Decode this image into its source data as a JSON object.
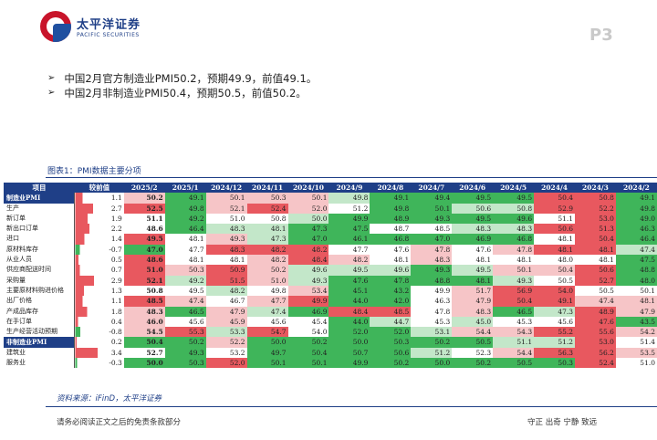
{
  "header": {
    "company_cn": "太平洋证券",
    "company_en": "PACIFIC SECURITIES",
    "page": "P3"
  },
  "bullets": [
    "中国2月官方制造业PMI50.2，预期49.9，前值49.1。",
    "中国2月非制造业PMI50.4，预期50.5，前值50.2。"
  ],
  "figure_title": "图表1：PMI数据主要分项",
  "table": {
    "columns": [
      "项目",
      "较前值",
      "2025/2",
      "2025/1",
      "2024/12",
      "2024/11",
      "2024/10",
      "2024/9",
      "2024/8",
      "2024/7",
      "2024/6",
      "2024/5",
      "2024/4",
      "2024/3",
      "2024/2"
    ],
    "rows": [
      {
        "name": "制造业PMI",
        "hl": true,
        "chg": "1.1",
        "vals": [
          "50.2",
          "49.1",
          "50.1",
          "50.3",
          "50.1",
          "49.8",
          "49.1",
          "49.4",
          "49.5",
          "49.5",
          "50.4",
          "50.8",
          "49.1"
        ]
      },
      {
        "name": "生产",
        "hl": false,
        "chg": "2.7",
        "vals": [
          "52.5",
          "49.8",
          "52.1",
          "52.4",
          "52.0",
          "51.2",
          "49.8",
          "50.1",
          "50.6",
          "50.8",
          "52.9",
          "52.2",
          "49.8"
        ]
      },
      {
        "name": "新订单",
        "hl": false,
        "chg": "1.9",
        "vals": [
          "51.1",
          "49.2",
          "51.0",
          "50.8",
          "50.0",
          "49.9",
          "48.9",
          "49.3",
          "49.5",
          "49.6",
          "51.1",
          "53.0",
          "49.0"
        ]
      },
      {
        "name": "新出口订单",
        "hl": false,
        "chg": "2.2",
        "vals": [
          "48.6",
          "46.4",
          "48.3",
          "48.1",
          "47.3",
          "47.5",
          "48.7",
          "48.5",
          "48.3",
          "48.3",
          "50.6",
          "51.3",
          "46.3"
        ]
      },
      {
        "name": "进口",
        "hl": false,
        "chg": "1.4",
        "vals": [
          "49.5",
          "48.1",
          "49.3",
          "47.3",
          "47.0",
          "46.1",
          "46.8",
          "47.0",
          "46.9",
          "46.8",
          "48.1",
          "50.4",
          "46.4"
        ]
      },
      {
        "name": "原材料库存",
        "hl": false,
        "chg": "-0.7",
        "vals": [
          "47.0",
          "47.7",
          "48.3",
          "48.2",
          "48.2",
          "47.7",
          "47.6",
          "47.8",
          "47.6",
          "47.8",
          "48.1",
          "48.1",
          "47.4"
        ]
      },
      {
        "name": "从业人员",
        "hl": false,
        "chg": "0.5",
        "vals": [
          "48.6",
          "48.1",
          "48.1",
          "48.2",
          "48.4",
          "48.2",
          "48.1",
          "48.3",
          "48.1",
          "48.1",
          "48.0",
          "48.1",
          "47.5"
        ]
      },
      {
        "name": "供应商配送时间",
        "hl": false,
        "chg": "0.7",
        "vals": [
          "51.0",
          "50.3",
          "50.9",
          "50.2",
          "49.6",
          "49.5",
          "49.6",
          "49.3",
          "49.5",
          "50.1",
          "50.4",
          "50.6",
          "48.8"
        ]
      },
      {
        "name": "采购量",
        "hl": false,
        "chg": "2.9",
        "vals": [
          "52.1",
          "49.2",
          "51.5",
          "51.0",
          "49.3",
          "47.6",
          "47.8",
          "48.8",
          "48.1",
          "49.3",
          "50.5",
          "52.7",
          "48.0"
        ]
      },
      {
        "name": "主要原材料购进价格",
        "hl": false,
        "chg": "1.3",
        "vals": [
          "50.8",
          "49.5",
          "48.2",
          "49.8",
          "53.4",
          "45.1",
          "43.2",
          "49.9",
          "51.7",
          "56.9",
          "54.0",
          "50.5",
          "50.1"
        ]
      },
      {
        "name": "出厂价格",
        "hl": false,
        "chg": "1.1",
        "vals": [
          "48.5",
          "47.4",
          "46.7",
          "47.7",
          "49.9",
          "44.0",
          "42.0",
          "46.3",
          "47.9",
          "50.4",
          "49.1",
          "47.4",
          "48.1"
        ]
      },
      {
        "name": "产成品库存",
        "hl": false,
        "chg": "1.8",
        "vals": [
          "48.3",
          "46.5",
          "47.9",
          "47.4",
          "46.9",
          "48.4",
          "48.5",
          "47.8",
          "48.3",
          "46.5",
          "47.3",
          "48.9",
          "47.9"
        ]
      },
      {
        "name": "在手订单",
        "hl": false,
        "chg": "0.4",
        "vals": [
          "46.0",
          "45.6",
          "45.9",
          "45.6",
          "45.4",
          "44.0",
          "44.7",
          "45.3",
          "45.0",
          "45.3",
          "45.6",
          "47.6",
          "43.5"
        ]
      },
      {
        "name": "生产经营活动预期",
        "hl": false,
        "chg": "-0.8",
        "vals": [
          "54.5",
          "55.3",
          "53.3",
          "54.7",
          "54.0",
          "52.0",
          "52.0",
          "53.1",
          "54.4",
          "54.3",
          "55.2",
          "55.6",
          "54.2"
        ]
      },
      {
        "name": "非制造业PMI",
        "hl": true,
        "chg": "0.2",
        "vals": [
          "50.4",
          "50.2",
          "52.2",
          "50.0",
          "50.2",
          "50.0",
          "50.3",
          "50.2",
          "50.5",
          "51.1",
          "51.2",
          "53.0",
          "51.4"
        ]
      },
      {
        "name": "建筑业",
        "hl": false,
        "chg": "3.4",
        "vals": [
          "52.7",
          "49.3",
          "53.2",
          "49.7",
          "50.4",
          "50.7",
          "50.6",
          "51.2",
          "52.3",
          "54.4",
          "56.3",
          "56.2",
          "53.5"
        ]
      },
      {
        "name": "服务业",
        "hl": false,
        "chg": "-0.3",
        "vals": [
          "50.0",
          "50.3",
          "52.0",
          "50.1",
          "50.1",
          "49.9",
          "50.2",
          "50.0",
          "50.2",
          "50.5",
          "50.3",
          "52.4",
          "51.0"
        ]
      }
    ]
  },
  "colors": {
    "up": "#e8585f",
    "up_light": "#f6c5c7",
    "down": "#3fb55a",
    "down_light": "#c3e7c9",
    "header": "#1f3f87"
  },
  "source": "资料来源：iFinD，太平洋证券",
  "footer": {
    "left": "请务必阅读正文之后的免责条款部分",
    "right": "守正 出奇 宁静 致远"
  }
}
